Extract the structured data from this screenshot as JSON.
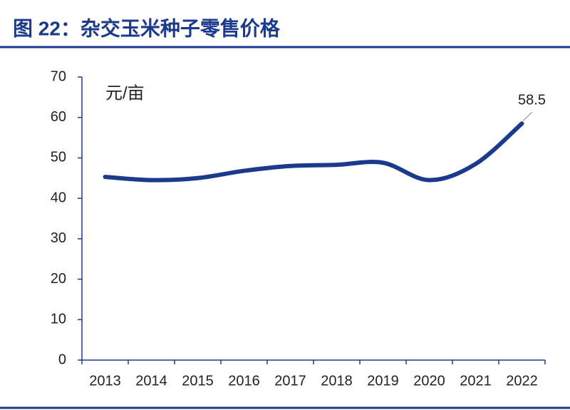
{
  "chart_data": {
    "type": "line",
    "title": "图 22：杂交玉米种子零售价格",
    "y_label": "元/亩",
    "categories": [
      "2013",
      "2014",
      "2015",
      "2016",
      "2017",
      "2018",
      "2019",
      "2020",
      "2021",
      "2022"
    ],
    "values": [
      45.3,
      44.5,
      45.0,
      46.8,
      48.0,
      48.3,
      48.8,
      44.5,
      48.5,
      58.5
    ],
    "color": "#1b3a8c",
    "ylim": [
      0,
      70
    ],
    "yticks": [
      0,
      10,
      20,
      30,
      40,
      50,
      60,
      70
    ],
    "grid": false
  }
}
